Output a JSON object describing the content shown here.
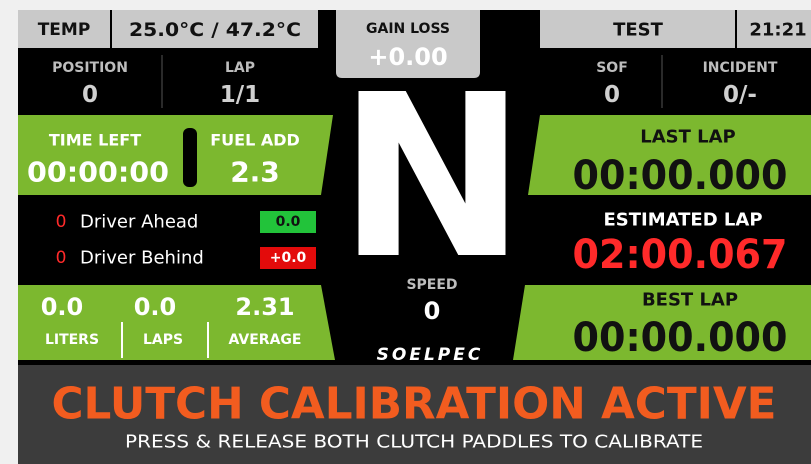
{
  "top_bar": {
    "temp_label": "TEMP",
    "temp_value": "25.0°C / 47.2°C",
    "gain_loss_label": "GAIN LOSS",
    "gain_loss_value": "+0.00",
    "session": "TEST",
    "clock": "21:21"
  },
  "stats": {
    "position_label": "POSITION",
    "position": "0",
    "lap_label": "LAP",
    "lap": "1/1",
    "sof_label": "SOF",
    "sof": "0",
    "incident_label": "INCIDENT",
    "incident": "0/-"
  },
  "fuel": {
    "time_left_label": "TIME LEFT",
    "time_left": "00:00:00",
    "fuel_add_label": "FUEL ADD",
    "fuel_add": "2.3",
    "liters": "0.0",
    "liters_label": "LITERS",
    "laps": "0.0",
    "laps_label": "LAPS",
    "average": "2.31",
    "average_label": "AVERAGE"
  },
  "gear": "N",
  "speed_label": "SPEED",
  "speed": "0",
  "relative": [
    {
      "position": "0",
      "name": "Driver Ahead",
      "gap": "0.0"
    },
    {
      "position": "0",
      "name": "Driver Behind",
      "gap": "+0.0"
    }
  ],
  "laps": {
    "last_label": "LAST LAP",
    "last": "00:00.000",
    "estimated_label": "ESTIMATED LAP",
    "estimated": "02:00.067",
    "best_label": "BEST LAP",
    "best": "00:00.000"
  },
  "brand": "SOELPEC",
  "banner": {
    "title": "CLUTCH CALIBRATION ACTIVE",
    "message": "PRESS & RELEASE BOTH CLUTCH PADDLES TO CALIBRATE"
  }
}
